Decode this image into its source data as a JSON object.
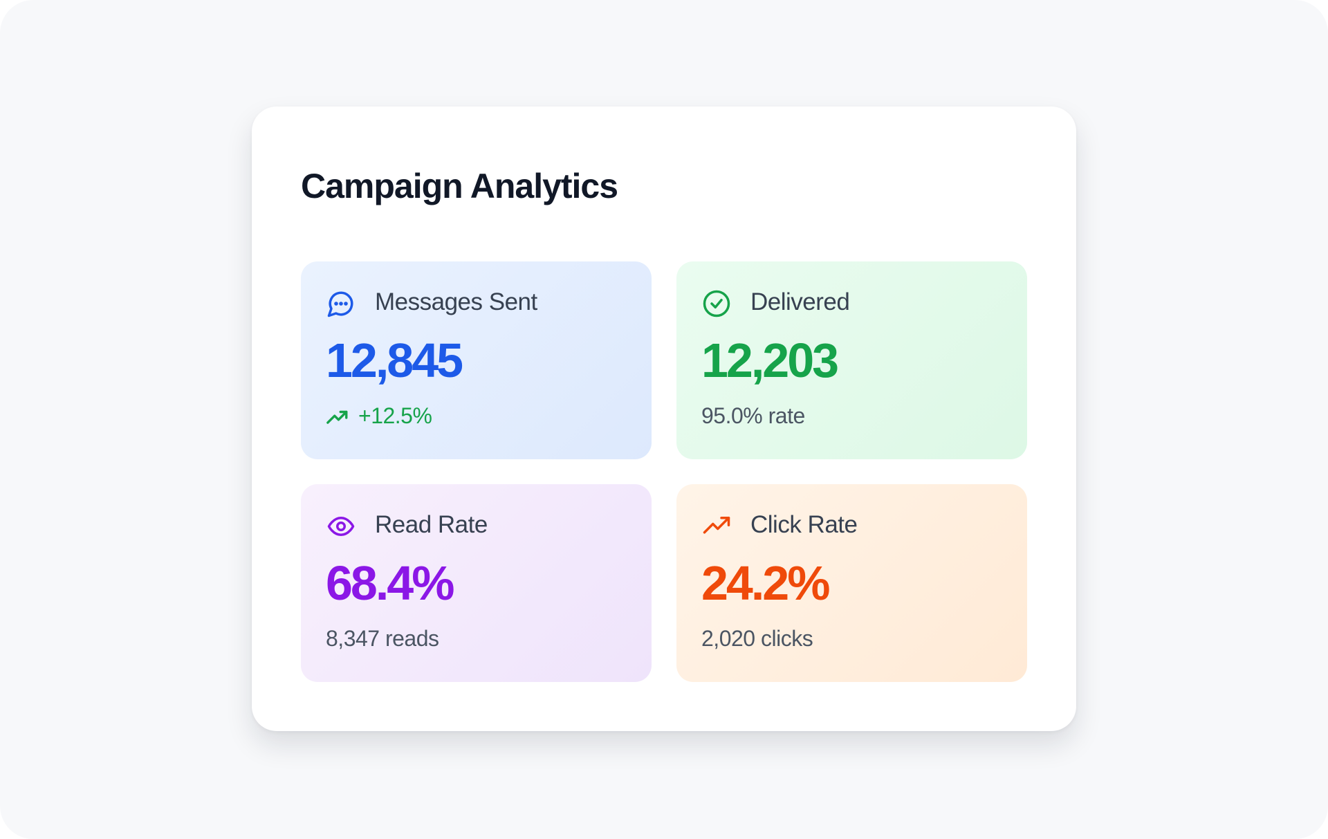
{
  "header": {
    "title": "Campaign Analytics"
  },
  "cards": [
    {
      "label": "Messages Sent",
      "value": "12,845",
      "sub": "+12.5%"
    },
    {
      "label": "Delivered",
      "value": "12,203",
      "sub": "95.0% rate"
    },
    {
      "label": "Read Rate",
      "value": "68.4%",
      "sub": "8,347 reads"
    },
    {
      "label": "Click Rate",
      "value": "24.2%",
      "sub": "2,020 clicks"
    }
  ]
}
